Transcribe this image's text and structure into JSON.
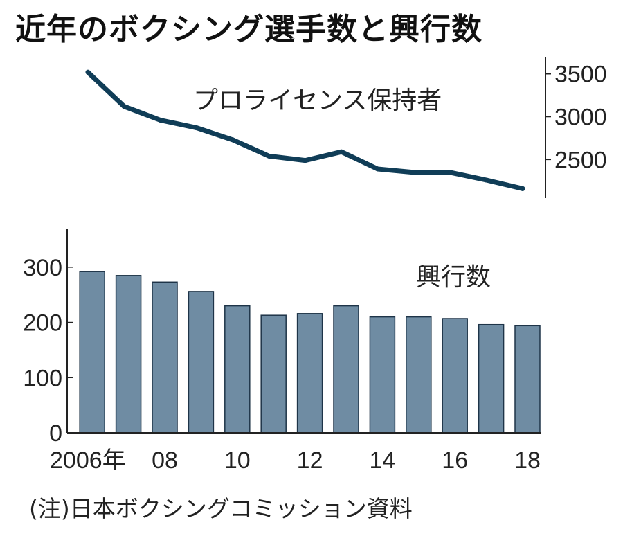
{
  "title": "近年のボクシング選手数と興行数",
  "note": "(注)日本ボクシングコミッション資料",
  "colors": {
    "line": "#103d57",
    "bar": "#6f8ca3",
    "bar_edge": "#1e3448",
    "axis": "#222222"
  },
  "chart_data": [
    {
      "type": "line",
      "name": "license_holders",
      "label": "プロライセンス保持者",
      "x": [
        2006,
        2007,
        2008,
        2009,
        2010,
        2011,
        2012,
        2013,
        2014,
        2015,
        2016,
        2017,
        2018
      ],
      "values": [
        3520,
        3120,
        2960,
        2870,
        2730,
        2540,
        2490,
        2590,
        2390,
        2350,
        2350,
        2260,
        2160
      ],
      "ylim": [
        2050,
        3700
      ],
      "yticks": [
        2500,
        3000,
        3500
      ]
    },
    {
      "type": "bar",
      "name": "events",
      "label": "興行数",
      "categories": [
        2006,
        2007,
        2008,
        2009,
        2010,
        2011,
        2012,
        2013,
        2014,
        2015,
        2016,
        2017,
        2018
      ],
      "values": [
        292,
        285,
        273,
        256,
        230,
        213,
        216,
        230,
        210,
        210,
        207,
        196,
        194
      ],
      "ylim": [
        0,
        370
      ],
      "yticks": [
        0,
        100,
        200,
        300
      ],
      "xtick_labels": [
        {
          "index": 0,
          "label": "2006年"
        },
        {
          "index": 2,
          "label": "08"
        },
        {
          "index": 4,
          "label": "10"
        },
        {
          "index": 6,
          "label": "12"
        },
        {
          "index": 8,
          "label": "14"
        },
        {
          "index": 10,
          "label": "16"
        },
        {
          "index": 12,
          "label": "18"
        }
      ]
    }
  ]
}
